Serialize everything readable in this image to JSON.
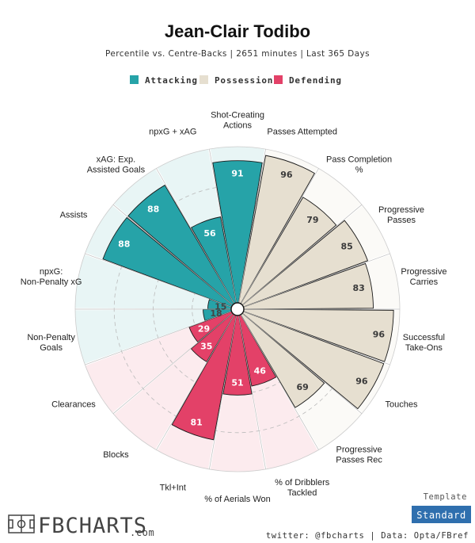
{
  "header": {
    "title": "Jean-Clair Todibo",
    "subtitle": "Percentile vs. Centre-Backs | 2651 minutes | Last 365 Days"
  },
  "legend": [
    {
      "label": "Attacking",
      "color": "#26a3a8"
    },
    {
      "label": "Possession",
      "color": "#e6dfd0"
    },
    {
      "label": "Defending",
      "color": "#e34168"
    }
  ],
  "chart_data": {
    "type": "polar-bar",
    "title": "Jean-Clair Todibo",
    "subtitle": "Percentile vs. Centre-Backs | 2651 minutes | Last 365 Days",
    "rmax": 100,
    "groups": {
      "Attacking": {
        "fill": "#26a3a8",
        "bg": "#e8f5f5"
      },
      "Possession": {
        "fill": "#e6dfd0",
        "bg": "#fbfaf7"
      },
      "Defending": {
        "fill": "#e34168",
        "bg": "#fcebee"
      }
    },
    "series": [
      {
        "label": "Shot-Creating Actions",
        "value": 91,
        "group": "Attacking"
      },
      {
        "label": "Passes Attempted",
        "value": 96,
        "group": "Possession"
      },
      {
        "label": "Pass Completion %",
        "value": 79,
        "group": "Possession"
      },
      {
        "label": "Progressive Passes",
        "value": 85,
        "group": "Possession"
      },
      {
        "label": "Progressive Carries",
        "value": 83,
        "group": "Possession"
      },
      {
        "label": "Successful Take-Ons",
        "value": 96,
        "group": "Possession"
      },
      {
        "label": "Touches",
        "value": 96,
        "group": "Possession"
      },
      {
        "label": "Progressive Passes Rec",
        "value": 69,
        "group": "Possession"
      },
      {
        "label": "% of Dribblers Tackled",
        "value": 46,
        "group": "Defending"
      },
      {
        "label": "% of Aerials Won",
        "value": 51,
        "group": "Defending"
      },
      {
        "label": "Tkl+Int",
        "value": 81,
        "group": "Defending"
      },
      {
        "label": "Blocks",
        "value": 35,
        "group": "Defending"
      },
      {
        "label": "Clearances",
        "value": 29,
        "group": "Defending"
      },
      {
        "label": "Non-Penalty Goals",
        "value": 18,
        "group": "Attacking"
      },
      {
        "label": "npxG: Non-Penalty xG",
        "value": 15,
        "group": "Attacking"
      },
      {
        "label": "Assists",
        "value": 88,
        "group": "Attacking"
      },
      {
        "label": "xAG: Exp. Assisted Goals",
        "value": 88,
        "group": "Attacking"
      },
      {
        "label": "npxG + xAG",
        "value": 56,
        "group": "Attacking"
      }
    ]
  },
  "footer": {
    "template_label": "Template",
    "template_value": "Standard",
    "template_color": "#2f6fae",
    "credit": "twitter: @fbcharts | Data: Opta/FBref",
    "logo_text": "FBCHARTS",
    "logo_suffix": ".com"
  }
}
